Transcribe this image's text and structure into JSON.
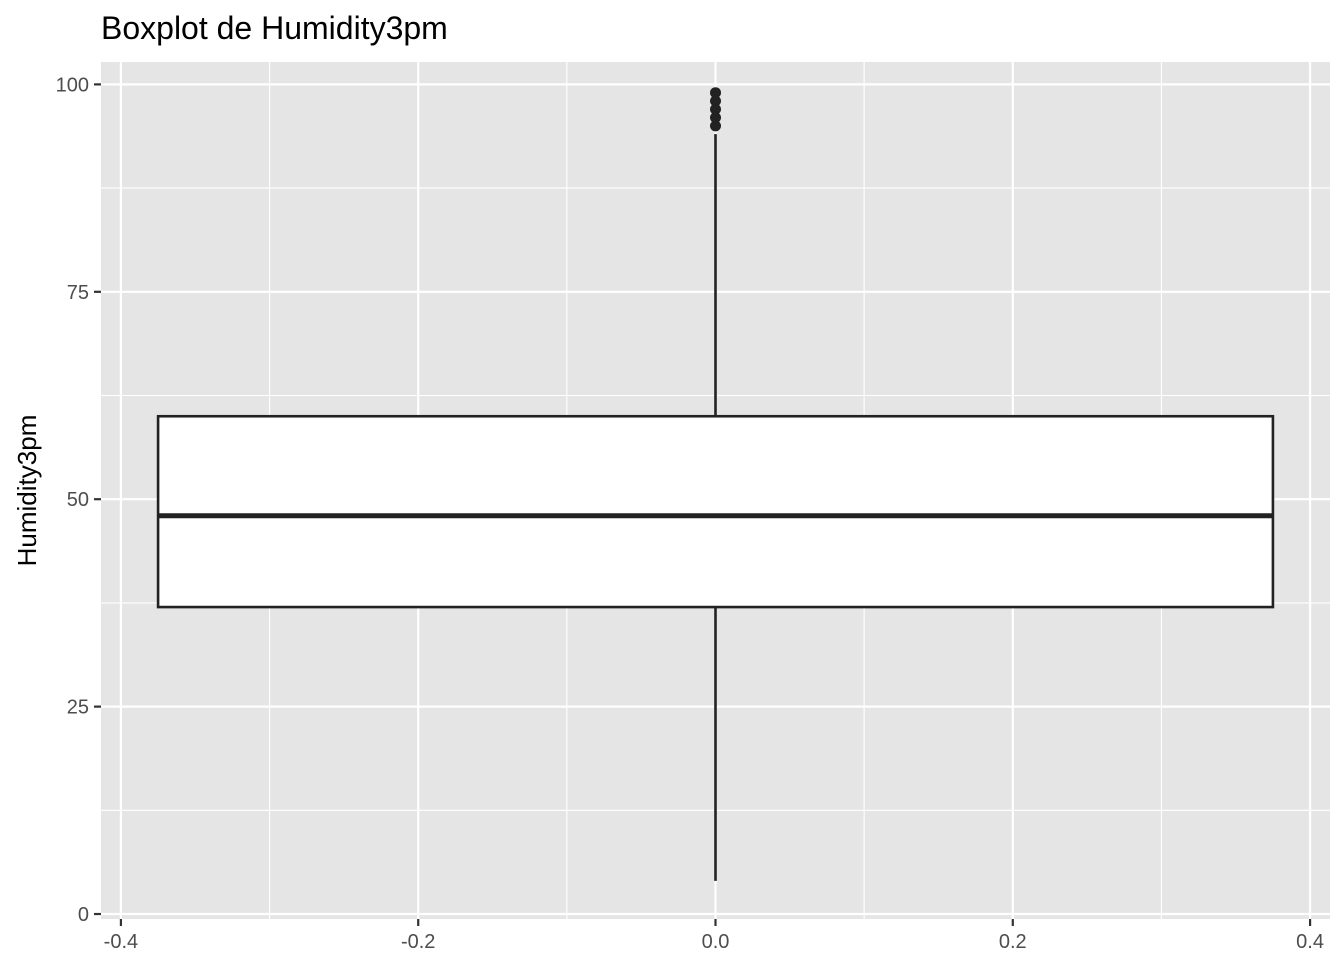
{
  "chart_data": {
    "type": "boxplot",
    "title": "Boxplot de Humidity3pm",
    "xlabel": "",
    "ylabel": "Humidity3pm",
    "x_range": [
      -0.4,
      0.4
    ],
    "y_range": [
      0,
      100
    ],
    "x_ticks": [
      -0.4,
      -0.2,
      0.0,
      0.2,
      0.4
    ],
    "x_tick_labels": [
      "-0.4",
      "-0.2",
      "0.0",
      "0.2",
      "0.4"
    ],
    "y_ticks": [
      0,
      25,
      50,
      75,
      100
    ],
    "y_tick_labels": [
      "0",
      "25",
      "50",
      "75",
      "100"
    ],
    "grid": true,
    "box": {
      "x_center": 0.0,
      "x_min": -0.375,
      "x_max": 0.375,
      "whisker_low": 4,
      "q1": 37,
      "median": 48,
      "q3": 60,
      "whisker_high": 94
    },
    "outliers": [
      95,
      96,
      97,
      98,
      99
    ],
    "colors": {
      "panel_background": "#e5e5e5",
      "grid_line": "#ffffff",
      "box_fill": "#ffffff",
      "box_stroke": "#222222",
      "outlier": "#222222"
    }
  }
}
